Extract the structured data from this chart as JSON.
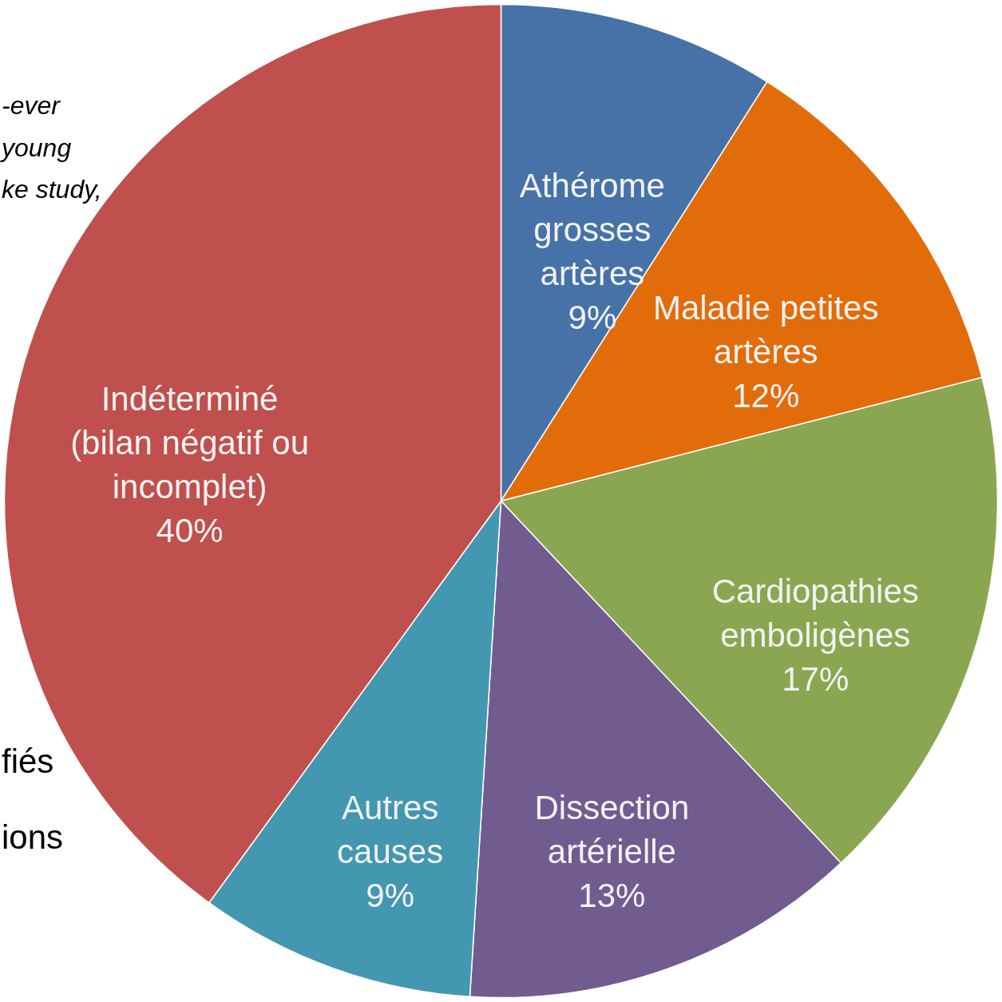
{
  "chart_data": {
    "type": "pie",
    "categories": [
      "Athérome\ngrosses\nartères",
      "Maladie petites\nartères",
      "Cardiopathies\nemboligènes",
      "Dissection\nartérielle",
      "Autres\ncauses",
      "Indéterminé\n(bilan négatif ou\nincomplet)"
    ],
    "values": [
      9,
      12,
      17,
      13,
      9,
      40
    ],
    "value_labels": [
      "9%",
      "12%",
      "17%",
      "13%",
      "9%",
      "40%"
    ],
    "colors": [
      "#4672a8",
      "#e36c0a",
      "#8ba650",
      "#725b8f",
      "#4397b0",
      "#c0504d"
    ],
    "annotations": [
      "-ever",
      "young",
      "ke study,",
      "fiés",
      "ions"
    ]
  }
}
